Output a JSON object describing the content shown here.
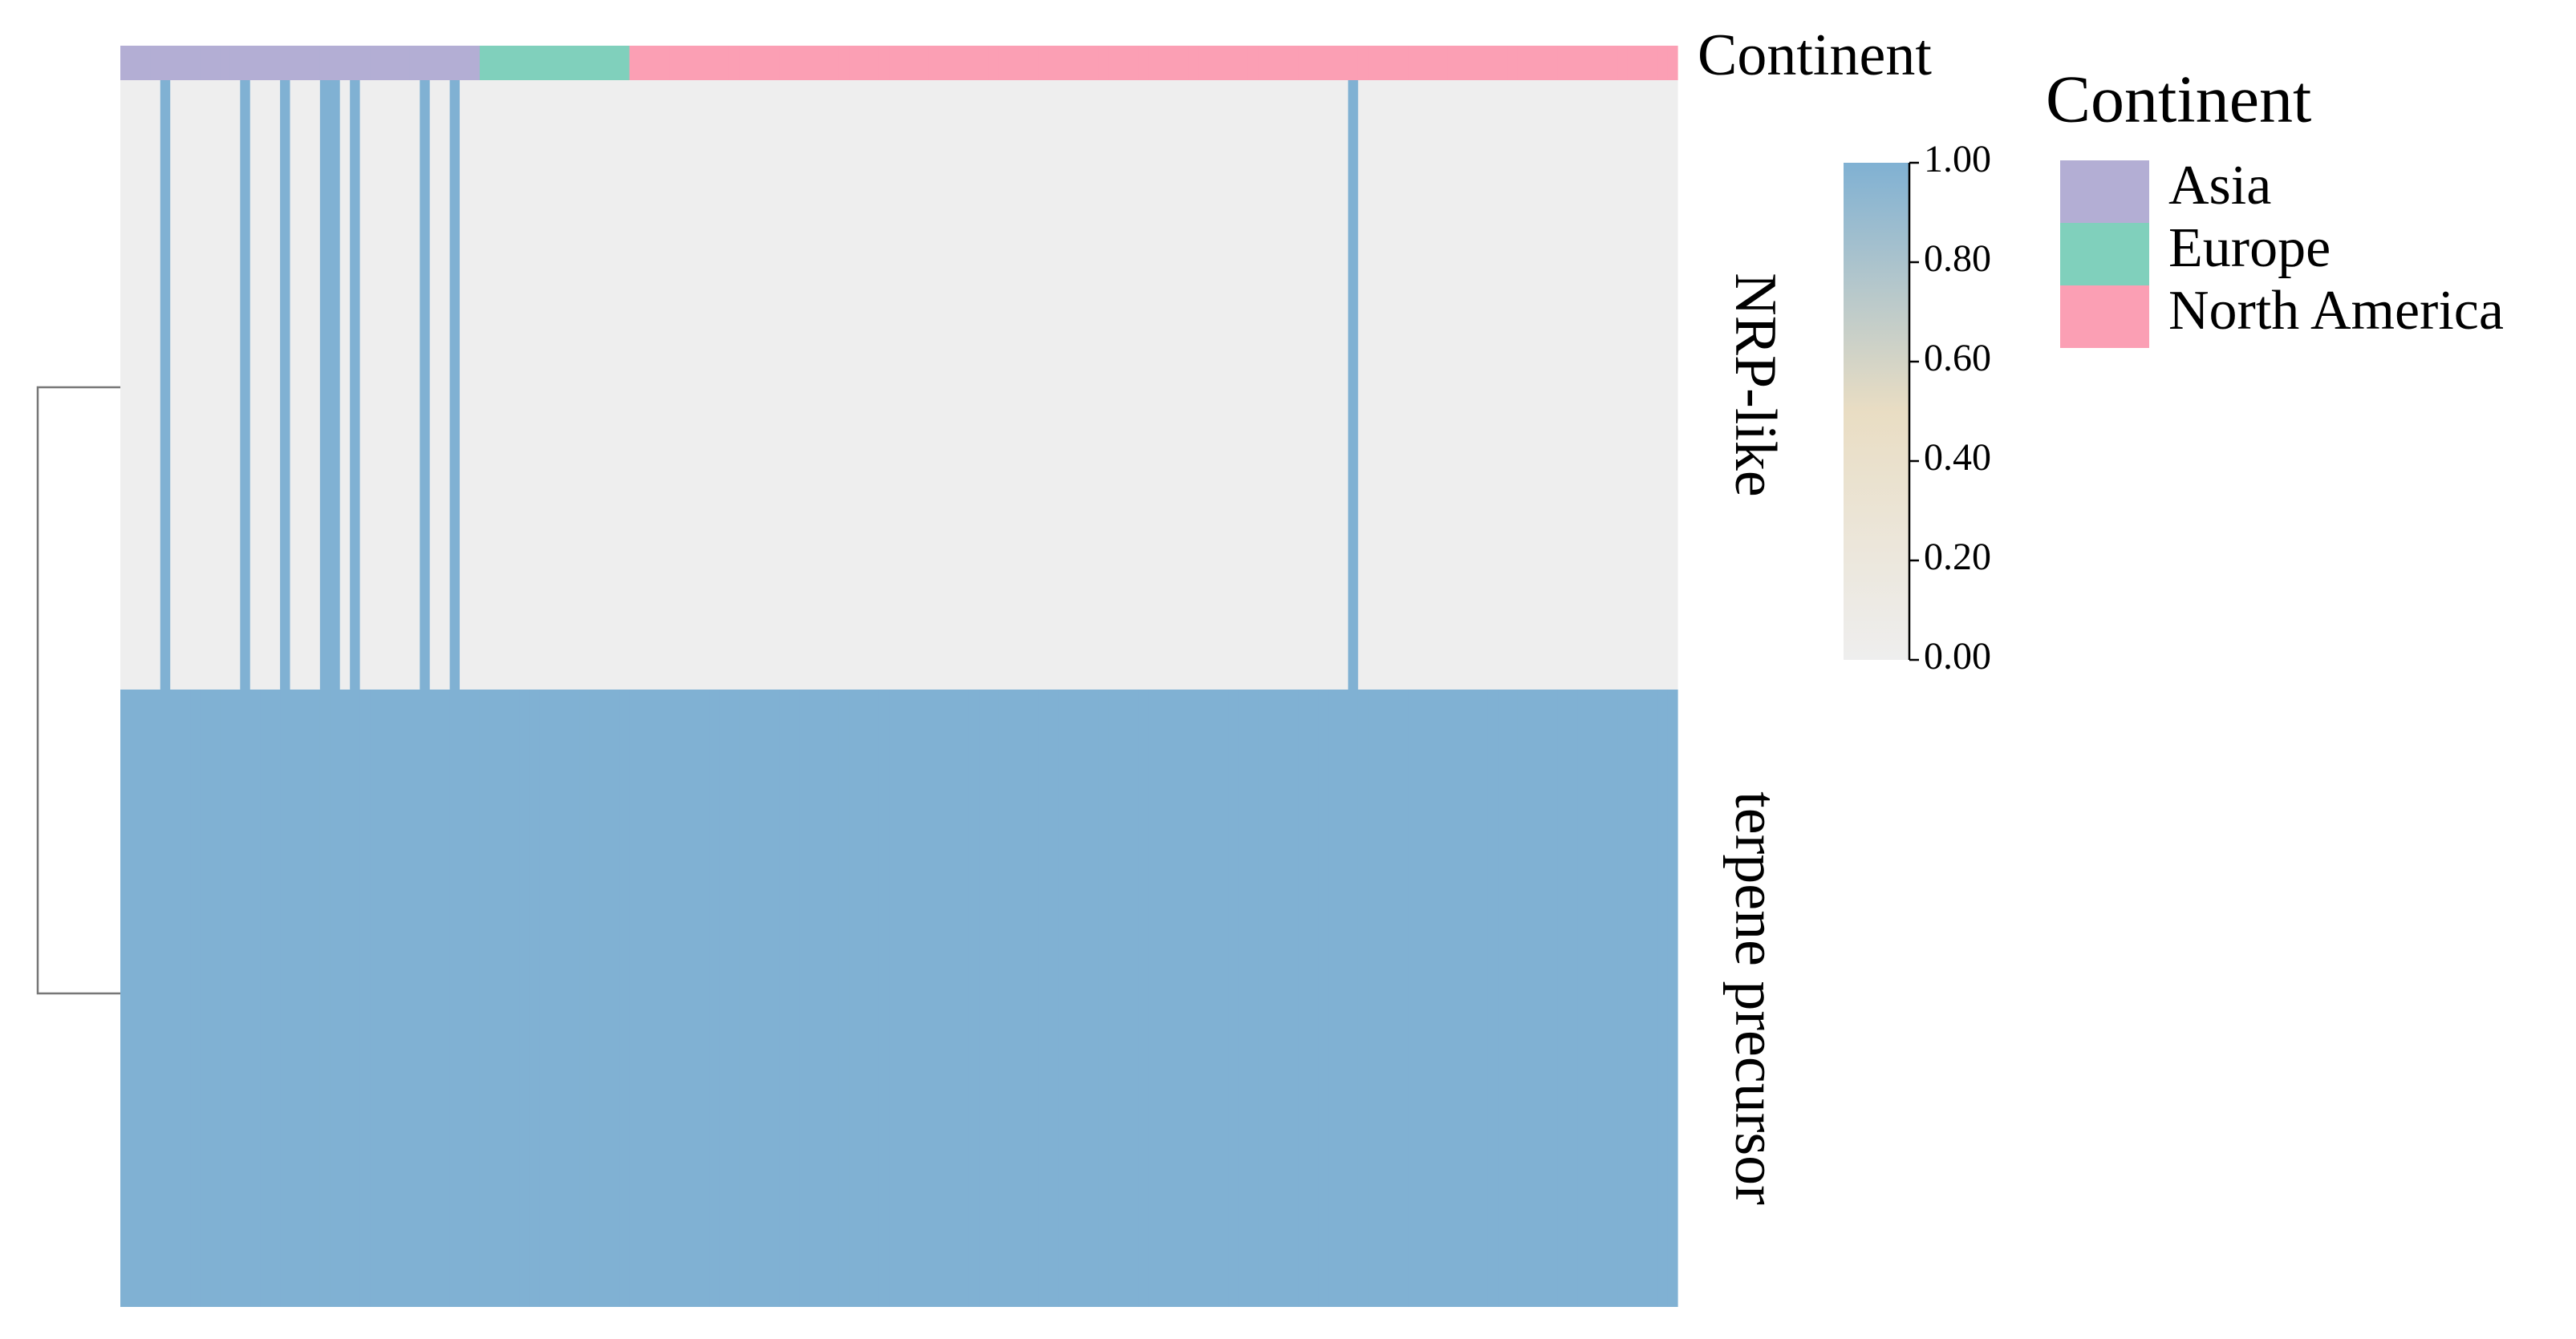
{
  "chart_data": {
    "type": "heatmap",
    "rows": [
      "NRP-like",
      "terpene precursor"
    ],
    "values": [
      [
        0,
        0,
        0,
        0,
        1,
        0,
        0,
        0,
        0,
        0,
        0,
        0,
        1,
        0,
        0,
        0,
        1,
        0,
        0,
        0,
        1,
        1,
        0,
        1,
        0,
        0,
        0,
        0,
        0,
        0,
        1,
        0,
        0,
        1,
        0,
        0,
        0,
        0,
        0,
        0,
        0,
        0,
        0,
        0,
        0,
        0,
        0,
        0,
        0,
        0,
        0,
        0,
        0,
        0,
        0,
        0,
        0,
        0,
        0,
        0,
        0,
        0,
        0,
        0,
        0,
        0,
        0,
        0,
        0,
        0,
        0,
        0,
        0,
        0,
        0,
        0,
        0,
        0,
        0,
        0,
        0,
        0,
        0,
        0,
        0,
        0,
        0,
        0,
        0,
        0,
        0,
        0,
        0,
        0,
        0,
        0,
        0,
        0,
        0,
        0,
        0,
        0,
        0,
        0,
        0,
        0,
        0,
        0,
        0,
        0,
        0,
        0,
        0,
        0,
        0,
        0,
        0,
        0,
        0,
        0,
        0,
        0,
        0,
        1,
        0,
        0,
        0,
        0,
        0,
        0,
        0,
        0,
        0,
        0,
        0,
        0,
        0,
        0,
        0,
        0,
        0,
        0,
        0,
        0,
        0,
        0,
        0,
        0,
        0,
        0,
        0,
        0,
        0,
        0,
        0,
        0
      ],
      [
        1,
        1,
        1,
        1,
        1,
        1,
        1,
        1,
        1,
        1,
        1,
        1,
        1,
        1,
        1,
        1,
        1,
        1,
        1,
        1,
        1,
        1,
        1,
        1,
        1,
        1,
        1,
        1,
        1,
        1,
        1,
        1,
        1,
        1,
        1,
        1,
        1,
        1,
        1,
        1,
        1,
        1,
        1,
        1,
        1,
        1,
        1,
        1,
        1,
        1,
        1,
        1,
        1,
        1,
        1,
        1,
        1,
        1,
        1,
        1,
        1,
        1,
        1,
        1,
        1,
        1,
        1,
        1,
        1,
        1,
        1,
        1,
        1,
        1,
        1,
        1,
        1,
        1,
        1,
        1,
        1,
        1,
        1,
        1,
        1,
        1,
        1,
        1,
        1,
        1,
        1,
        1,
        1,
        1,
        1,
        1,
        1,
        1,
        1,
        1,
        1,
        1,
        1,
        1,
        1,
        1,
        1,
        1,
        1,
        1,
        1,
        1,
        1,
        1,
        1,
        1,
        1,
        1,
        1,
        1,
        1,
        1,
        1,
        1,
        1,
        1,
        1,
        1,
        1,
        1,
        1,
        1,
        1,
        1,
        1,
        1,
        1,
        1,
        1,
        1,
        1,
        1,
        1,
        1,
        1,
        1,
        1,
        1,
        1,
        1,
        1,
        1,
        1,
        1,
        1,
        1
      ]
    ],
    "colorscale": [
      "#eeeeee",
      "#e9ddc3",
      "#80b1d3"
    ],
    "clim": [
      0,
      1
    ],
    "cticks": [
      {
        "value": 0,
        "label": "0.00"
      },
      {
        "value": 0.2,
        "label": "0.20"
      },
      {
        "value": 0.4,
        "label": "0.40"
      },
      {
        "value": 0.6,
        "label": "0.60"
      },
      {
        "value": 0.8,
        "label": "0.80"
      },
      {
        "value": 1,
        "label": "1.00"
      }
    ],
    "annotation": {
      "name": "Continent",
      "groups": [
        {
          "name": "Asia",
          "color": "#b3aed4"
        },
        {
          "name": "Europe",
          "color": "#80d0bc"
        },
        {
          "name": "North America",
          "color": "#fb9fb4"
        }
      ],
      "values": [
        "Asia",
        "Asia",
        "Asia",
        "Asia",
        "Asia",
        "Asia",
        "Asia",
        "Asia",
        "Asia",
        "Asia",
        "Asia",
        "Asia",
        "Asia",
        "Asia",
        "Asia",
        "Asia",
        "Asia",
        "Asia",
        "Asia",
        "Asia",
        "Asia",
        "Asia",
        "Asia",
        "Asia",
        "Asia",
        "Asia",
        "Asia",
        "Asia",
        "Asia",
        "Asia",
        "Asia",
        "Asia",
        "Asia",
        "Asia",
        "Asia",
        "Asia",
        "Europe",
        "Europe",
        "Europe",
        "Europe",
        "Europe",
        "Europe",
        "Europe",
        "Europe",
        "Europe",
        "Europe",
        "Europe",
        "Europe",
        "Europe",
        "Europe",
        "Europe",
        "North America",
        "North America",
        "North America",
        "North America",
        "North America",
        "North America",
        "North America",
        "North America",
        "North America",
        "North America",
        "North America",
        "North America",
        "North America",
        "North America",
        "North America",
        "North America",
        "North America",
        "North America",
        "North America",
        "North America",
        "North America",
        "North America",
        "North America",
        "North America",
        "North America",
        "North America",
        "North America",
        "North America",
        "North America",
        "North America",
        "North America",
        "North America",
        "North America",
        "North America",
        "North America",
        "North America",
        "North America",
        "North America",
        "North America",
        "North America",
        "North America",
        "North America",
        "North America",
        "North America",
        "North America",
        "North America",
        "North America",
        "North America",
        "North America",
        "North America",
        "North America",
        "North America",
        "North America",
        "North America",
        "North America",
        "North America",
        "North America",
        "North America",
        "North America",
        "North America",
        "North America",
        "North America",
        "North America",
        "North America",
        "North America",
        "North America",
        "North America",
        "North America",
        "North America",
        "North America",
        "North America",
        "North America",
        "North America",
        "North America",
        "North America",
        "North America",
        "North America",
        "North America",
        "North America",
        "North America",
        "North America",
        "North America",
        "North America",
        "North America",
        "North America",
        "North America",
        "North America",
        "North America",
        "North America",
        "North America",
        "North America",
        "North America",
        "North America",
        "North America",
        "North America",
        "North America",
        "North America",
        "North America",
        "North America",
        "North America",
        "North America",
        "North America",
        "North America",
        "North America",
        "North America"
      ]
    }
  }
}
